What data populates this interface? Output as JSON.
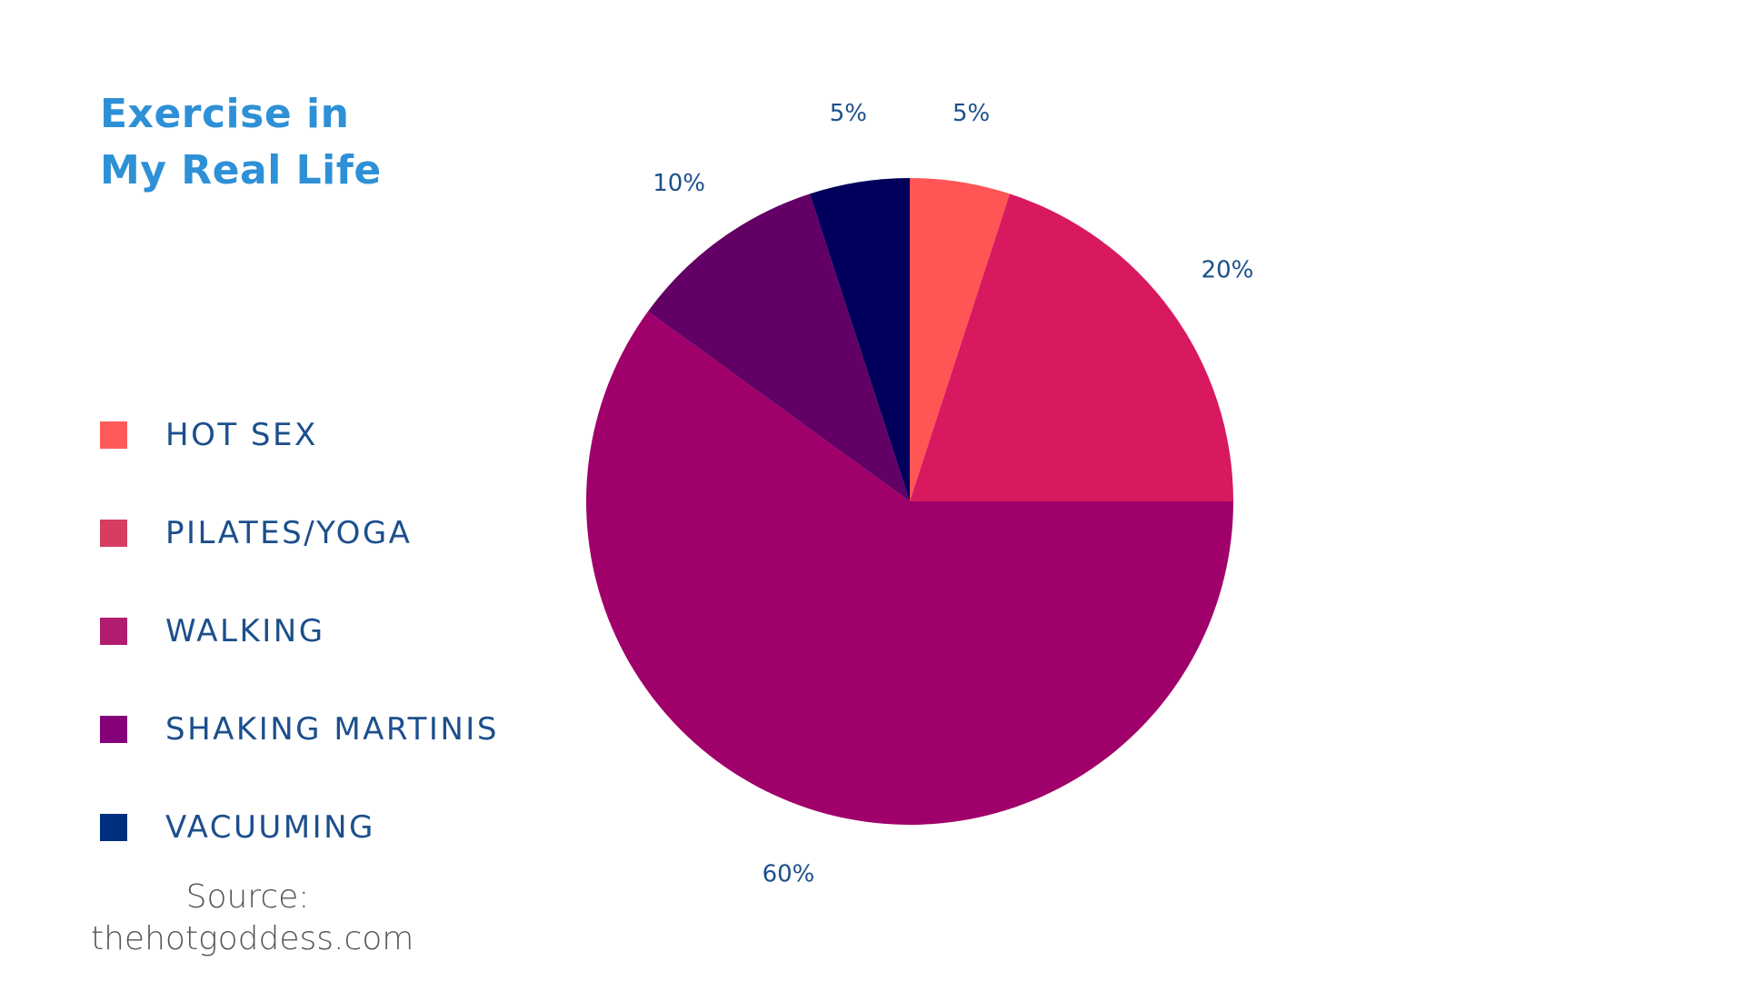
{
  "title": {
    "line1": "Exercise in",
    "line2": "My Real Life"
  },
  "source": {
    "line1": "Source:",
    "line2": "thehotgoddess.com"
  },
  "chart_data": {
    "type": "pie",
    "title": "Exercise in My Real Life",
    "start_angle_deg": 0,
    "direction": "clockwise",
    "legend_position": "left",
    "slices": [
      {
        "label": "HOT SEX",
        "value": 5,
        "value_label": "5%",
        "color": "#FF5555",
        "legend_color": "#FF5A5A"
      },
      {
        "label": "PILATES/YOGA",
        "value": 20,
        "value_label": "20%",
        "color": "#D81960",
        "legend_color": "#D63D60"
      },
      {
        "label": "WALKING",
        "value": 60,
        "value_label": "60%",
        "color": "#A0006A",
        "legend_color": "#B01D6E"
      },
      {
        "label": "SHAKING MARTINIS",
        "value": 10,
        "value_label": "10%",
        "color": "#620065",
        "legend_color": "#86007A"
      },
      {
        "label": "VACUUMING",
        "value": 5,
        "value_label": "5%",
        "color": "#00005C",
        "legend_color": "#00307D"
      }
    ]
  }
}
